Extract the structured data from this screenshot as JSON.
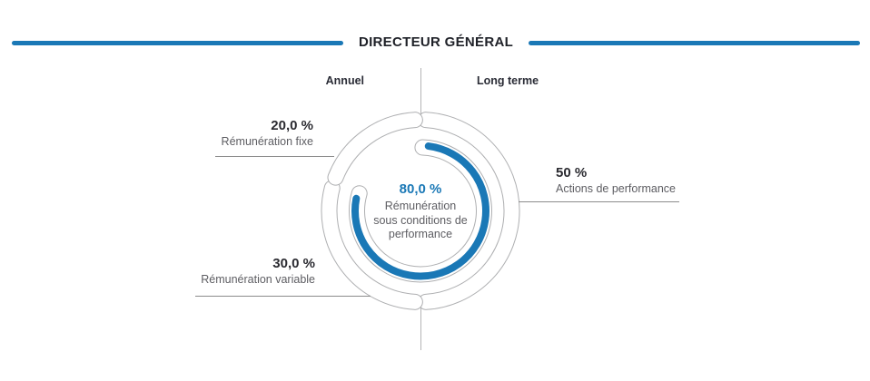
{
  "header": {
    "title": "DIRECTEUR GÉNÉRAL"
  },
  "chart_data": {
    "type": "donut",
    "title": "DIRECTEUR GÉNÉRAL",
    "group_labels": [
      {
        "id": "annuel",
        "label": "Annuel"
      },
      {
        "id": "long-terme",
        "label": "Long terme"
      }
    ],
    "segments": [
      {
        "id": "remuneration-fixe",
        "label": "Rémunération fixe",
        "value_label": "20,0 %",
        "percent": 20.0,
        "group": "Annuel"
      },
      {
        "id": "remuneration-variable",
        "label": "Rémunération variable",
        "value_label": "30,0 %",
        "percent": 30.0,
        "group": "Annuel"
      },
      {
        "id": "actions-de-performance",
        "label": "Actions de performance",
        "value_label": "50 %",
        "percent": 50.0,
        "group": "Long terme"
      }
    ],
    "inner_ring": {
      "id": "remuneration-sous-conditions",
      "value_label": "80,0 %",
      "percent": 80.0,
      "label": "Rémunération sous conditions de performance"
    },
    "layout": {
      "clockwise_from_top": [
        2,
        1,
        0
      ],
      "boundary_gap_deg": 7,
      "inner_end_gap_deg": 2,
      "grid": false,
      "legend_position": "around"
    },
    "colors": {
      "accent_blue": "#1a78b6",
      "ring_outline": "#aeafb1",
      "leader_line": "#8c8c8c",
      "divider_line": "#b4b4b6",
      "text_dark": "#2a2a30",
      "text_gray": "#5d5d62"
    }
  }
}
